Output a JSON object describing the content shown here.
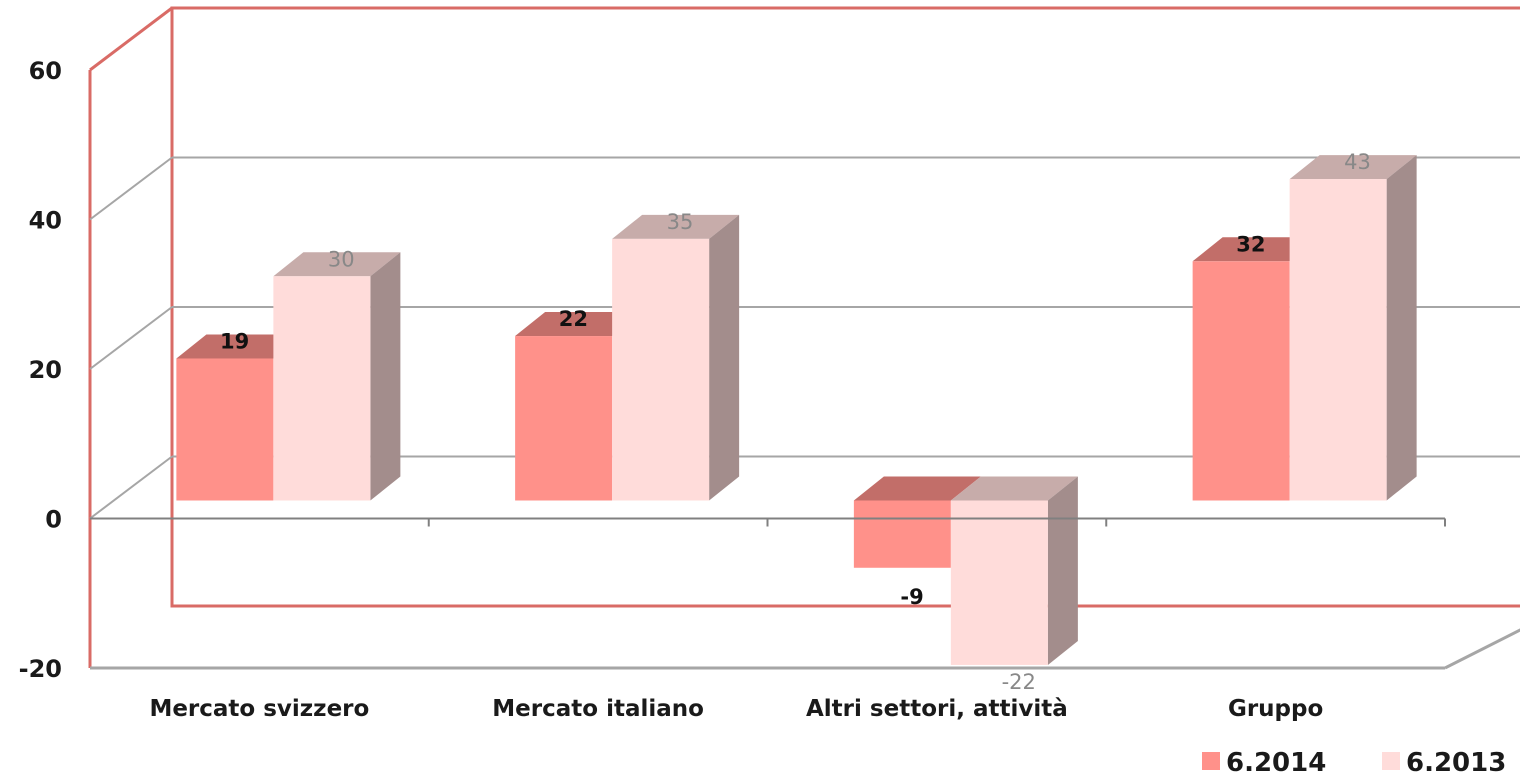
{
  "chart_data": {
    "type": "bar",
    "categories": [
      "Mercato svizzero",
      "Mercato italiano",
      "Altri settori, attività",
      "Gruppo"
    ],
    "series": [
      {
        "name": "6.2014",
        "values": [
          19,
          22,
          -9,
          32
        ],
        "color": "#ff918a"
      },
      {
        "name": "6.2013",
        "values": [
          30,
          35,
          -22,
          43
        ],
        "color": "#ffdcda"
      }
    ],
    "title": "",
    "xlabel": "",
    "ylabel": "",
    "ylim": [
      -20,
      60
    ],
    "yticks": [
      -20,
      0,
      20,
      40,
      60
    ],
    "grid": true,
    "legend": "bottom-right",
    "style": "3d-clustered-column",
    "colors": {
      "wall_frame": "#d96b66",
      "gridline": "#a6a6a6",
      "floor": "#a6a6a6"
    }
  }
}
